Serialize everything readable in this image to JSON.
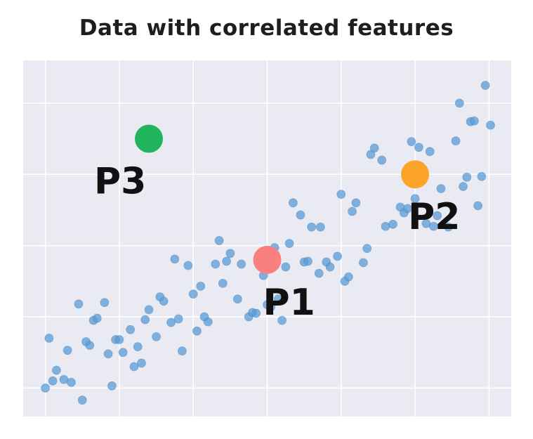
{
  "chart_data": {
    "type": "scatter",
    "title": "Data with correlated features",
    "xlabel": "",
    "ylabel": "",
    "grid": true,
    "xlim": [
      -0.3,
      6.3
    ],
    "ylim": [
      -0.4,
      4.6
    ],
    "series": [
      {
        "color": "#5b9bd5",
        "points": [
          [
            0,
            0
          ],
          [
            0.05,
            0.7
          ],
          [
            0.1,
            0.1
          ],
          [
            0.15,
            0.25
          ],
          [
            0.25,
            0.12
          ],
          [
            0.3,
            0.53
          ],
          [
            0.35,
            0.08
          ],
          [
            0.45,
            1.18
          ],
          [
            0.5,
            -0.17
          ],
          [
            0.55,
            0.65
          ],
          [
            0.6,
            0.6
          ],
          [
            0.65,
            0.95
          ],
          [
            0.7,
            0.98
          ],
          [
            0.8,
            1.2
          ],
          [
            0.85,
            0.48
          ],
          [
            0.9,
            0.03
          ],
          [
            0.95,
            0.68
          ],
          [
            1.0,
            0.68
          ],
          [
            1.05,
            0.5
          ],
          [
            1.15,
            0.82
          ],
          [
            1.2,
            0.3
          ],
          [
            1.25,
            0.58
          ],
          [
            1.3,
            0.35
          ],
          [
            1.35,
            0.96
          ],
          [
            1.4,
            1.1
          ],
          [
            1.5,
            0.72
          ],
          [
            1.55,
            1.28
          ],
          [
            1.6,
            1.22
          ],
          [
            1.7,
            0.92
          ],
          [
            1.75,
            1.81
          ],
          [
            1.8,
            0.97
          ],
          [
            1.85,
            0.52
          ],
          [
            1.93,
            1.72
          ],
          [
            2.0,
            1.32
          ],
          [
            2.05,
            0.8
          ],
          [
            2.1,
            1.43
          ],
          [
            2.15,
            1.0
          ],
          [
            2.2,
            0.93
          ],
          [
            2.3,
            1.74
          ],
          [
            2.35,
            2.07
          ],
          [
            2.4,
            1.47
          ],
          [
            2.45,
            1.78
          ],
          [
            2.5,
            1.89
          ],
          [
            2.6,
            1.25
          ],
          [
            2.65,
            1.74
          ],
          [
            2.75,
            1.0
          ],
          [
            2.8,
            1.06
          ],
          [
            2.85,
            1.05
          ],
          [
            2.95,
            1.58
          ],
          [
            3.0,
            1.17
          ],
          [
            3.05,
            1.14
          ],
          [
            3.1,
            1.97
          ],
          [
            3.15,
            1.25
          ],
          [
            3.2,
            0.95
          ],
          [
            3.25,
            1.7
          ],
          [
            3.3,
            2.03
          ],
          [
            3.35,
            2.6
          ],
          [
            3.45,
            2.43
          ],
          [
            3.5,
            1.77
          ],
          [
            3.55,
            1.78
          ],
          [
            3.6,
            2.26
          ],
          [
            3.7,
            1.61
          ],
          [
            3.72,
            2.26
          ],
          [
            3.8,
            1.77
          ],
          [
            3.85,
            1.7
          ],
          [
            3.95,
            1.85
          ],
          [
            4.0,
            2.72
          ],
          [
            4.05,
            1.5
          ],
          [
            4.1,
            1.56
          ],
          [
            4.15,
            2.48
          ],
          [
            4.2,
            2.6
          ],
          [
            4.3,
            1.76
          ],
          [
            4.35,
            1.96
          ],
          [
            4.4,
            3.28
          ],
          [
            4.45,
            3.37
          ],
          [
            4.55,
            3.2
          ],
          [
            4.6,
            2.27
          ],
          [
            4.7,
            2.3
          ],
          [
            4.8,
            2.54
          ],
          [
            4.85,
            2.46
          ],
          [
            4.9,
            2.52
          ],
          [
            4.95,
            3.46
          ],
          [
            5.0,
            2.66
          ],
          [
            5.05,
            3.38
          ],
          [
            5.15,
            2.31
          ],
          [
            5.2,
            3.32
          ],
          [
            5.25,
            2.27
          ],
          [
            5.3,
            2.42
          ],
          [
            5.35,
            2.8
          ],
          [
            5.45,
            2.26
          ],
          [
            5.55,
            3.47
          ],
          [
            5.6,
            4.0
          ],
          [
            5.65,
            2.83
          ],
          [
            5.7,
            2.96
          ],
          [
            5.75,
            3.74
          ],
          [
            5.8,
            3.75
          ],
          [
            5.85,
            2.56
          ],
          [
            5.9,
            2.97
          ],
          [
            5.95,
            4.25
          ],
          [
            6.02,
            3.69
          ]
        ]
      }
    ],
    "highlights": [
      {
        "label": "P1",
        "x": 3.0,
        "y": 1.8,
        "color": "#fa7f7f"
      },
      {
        "label": "P2",
        "x": 5.0,
        "y": 3.0,
        "color": "#fca428"
      },
      {
        "label": "P3",
        "x": 1.4,
        "y": 3.5,
        "color": "#21b45c"
      }
    ]
  }
}
